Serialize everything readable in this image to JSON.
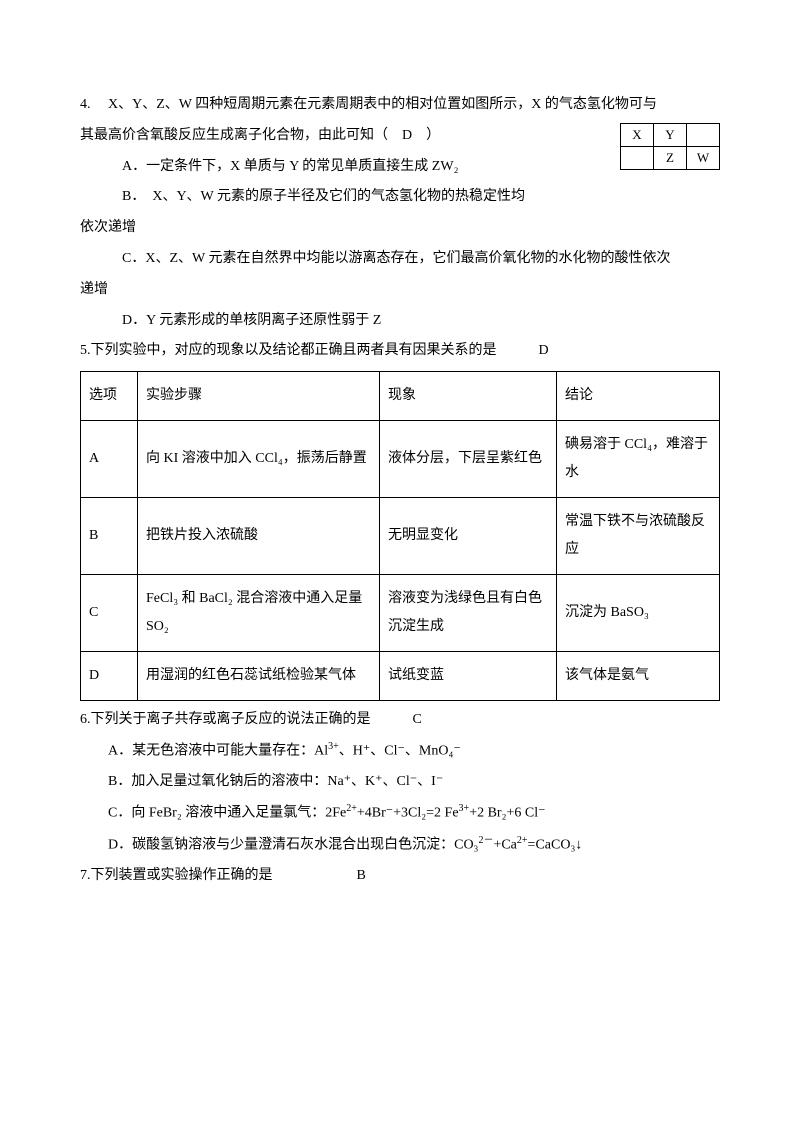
{
  "q4": {
    "stem1": "4.　 X、Y、Z、W 四种短周期元素在元素周期表中的相对位置如图所示，X 的气态氢化物可与",
    "stem2": "其最高价含氧酸反应生成离子化合物，由此可知（　D　）",
    "optA": "A．一定条件下，X 单质与 Y 的常见单质直接生成 ZW₂",
    "optB": "B．　X、Y、W 元素的原子半径及它们的气态氢化物的热稳定性均",
    "optB2": "依次递增",
    "optC": "C．X、Z、W 元素在自然界中均能以游离态存在，它们最高价氧化物的水化物的酸性依次",
    "optC2": "递增",
    "optD": "D．Y 元素形成的单核阴离子还原性弱于 Z",
    "grid": [
      [
        "X",
        "Y",
        ""
      ],
      [
        "",
        "Z",
        "W"
      ]
    ]
  },
  "q5": {
    "stem": "5.下列实验中，对应的现象以及结论都正确且两者具有因果关系的是",
    "ans": "D",
    "head": {
      "opt": "选项",
      "step": "实验步骤",
      "phen": "现象",
      "conc": "结论"
    },
    "rows": [
      {
        "opt": "A",
        "step": "向 KI 溶液中加入 CCl₄，振荡后静置",
        "phen": "液体分层，下层呈紫红色",
        "conc": "碘易溶于 CCl₄，难溶于水"
      },
      {
        "opt": "B",
        "step": "把铁片投入浓硫酸",
        "phen": "无明显变化",
        "conc": "常温下铁不与浓硫酸反应"
      },
      {
        "opt": "C",
        "step": "FeCl₃ 和 BaCl₂ 混合溶液中通入足量 SO₂",
        "phen": "溶液变为浅绿色且有白色沉淀生成",
        "conc": "沉淀为 BaSO₃"
      },
      {
        "opt": "D",
        "step": "用湿润的红色石蕊试纸检验某气体",
        "phen": "试纸变蓝",
        "conc": "该气体是氨气"
      }
    ]
  },
  "q6": {
    "stem": "6.下列关于离子共存或离子反应的说法正确的是",
    "ans": "C",
    "optA_pre": "A．某无色溶液中可能大量存在：Al",
    "optA_post": "、H⁺、Cl⁻、MnO₄⁻",
    "optB": "B．加入足量过氧化钠后的溶液中：Na⁺、K⁺、Cl⁻、I⁻",
    "optC_pre": "C．向 FeBr₂ 溶液中通入足量氯气：2Fe",
    "optC_mid1": "+4Br⁻+3Cl₂=2 Fe",
    "optC_mid2": "+2 Br₂+6 Cl⁻",
    "optD_pre": "D．碳酸氢钠溶液与少量澄清石灰水混合出现白色沉淀：CO₃",
    "optD_mid": "+Ca",
    "optD_post": "=CaCO₃↓"
  },
  "q7": {
    "stem": "7.下列装置或实验操作正确的是",
    "ans": "B"
  }
}
